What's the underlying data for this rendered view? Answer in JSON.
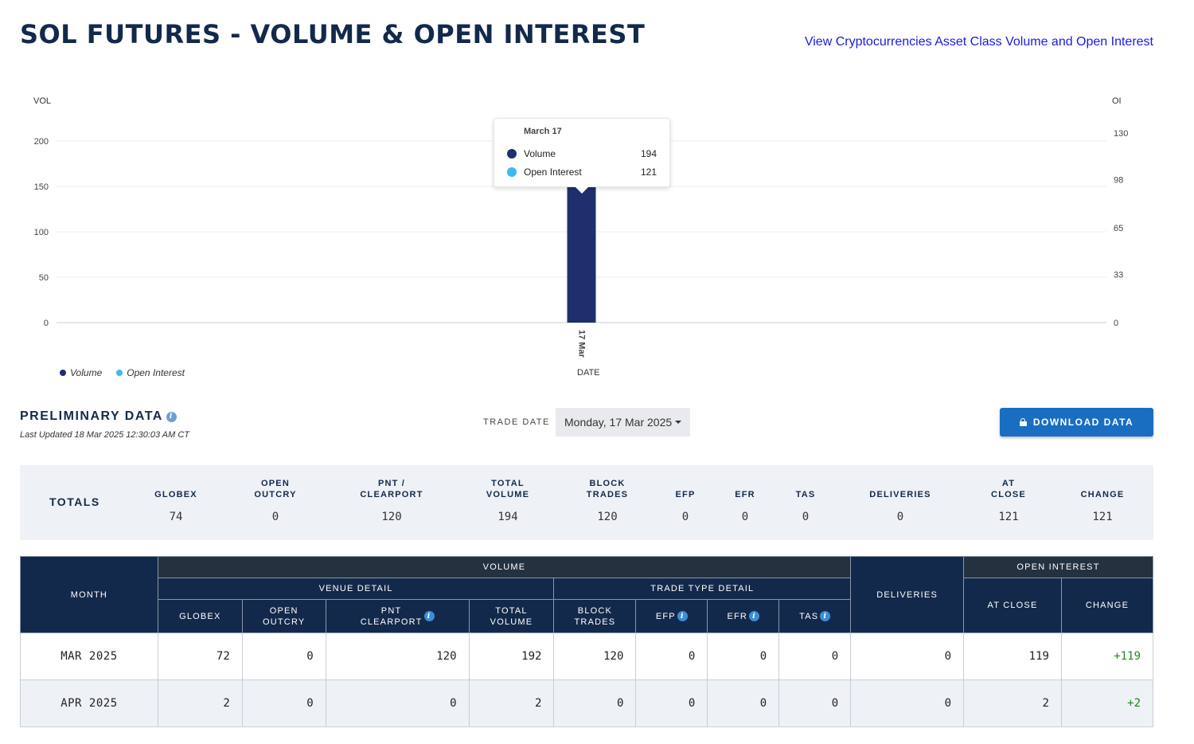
{
  "header": {
    "title": "SOL FUTURES - VOLUME & OPEN INTEREST",
    "asset_link": "View Cryptocurrencies Asset Class Volume and Open Interest"
  },
  "chart_data": {
    "type": "bar",
    "categories": [
      "17 Mar"
    ],
    "series": [
      {
        "name": "Volume",
        "values": [
          194
        ],
        "color": "#1f2f6e",
        "axis": "left"
      },
      {
        "name": "Open Interest",
        "values": [
          121
        ],
        "color": "#3bbcf0",
        "axis": "right"
      }
    ],
    "ylabel_left": "VOL",
    "ylabel_right": "OI",
    "xlabel": "DATE",
    "yticks_left": [
      "200",
      "150",
      "100",
      "50",
      "0"
    ],
    "yticks_right": [
      "130",
      "98",
      "65",
      "33",
      "0"
    ],
    "ylim_left": [
      0,
      200
    ],
    "grid": true,
    "legend": "bottom-left"
  },
  "tooltip": {
    "title": "March 17",
    "rows": [
      {
        "name": "Volume",
        "value": "194",
        "color": "#1f2f6e"
      },
      {
        "name": "Open Interest",
        "value": "121",
        "color": "#3bbcf0"
      }
    ]
  },
  "legend": {
    "volume": "Volume",
    "open_interest": "Open Interest"
  },
  "prelim": {
    "title": "PRELIMINARY DATA",
    "last_updated": "Last Updated 18 Mar 2025 12:30:03 AM CT",
    "trade_date_label": "TRADE DATE",
    "trade_date_value": "Monday, 17 Mar 2025",
    "download_label": "DOWNLOAD DATA"
  },
  "totals": {
    "label": "TOTALS",
    "columns": [
      {
        "head": "GLOBEX",
        "value": "74"
      },
      {
        "head": "OPEN\nOUTCRY",
        "value": "0"
      },
      {
        "head": "PNT /\nCLEARPORT",
        "value": "120"
      },
      {
        "head": "TOTAL\nVOLUME",
        "value": "194"
      },
      {
        "head": "BLOCK\nTRADES",
        "value": "120"
      },
      {
        "head": "EFP",
        "value": "0"
      },
      {
        "head": "EFR",
        "value": "0"
      },
      {
        "head": "TAS",
        "value": "0"
      },
      {
        "head": "DELIVERIES",
        "value": "0"
      },
      {
        "head": "AT\nCLOSE",
        "value": "121"
      },
      {
        "head": "CHANGE",
        "value": "121"
      }
    ]
  },
  "table": {
    "month": "MONTH",
    "volume": "VOLUME",
    "venue_detail": "VENUE DETAIL",
    "trade_type_detail": "TRADE TYPE DETAIL",
    "deliveries": "DELIVERIES",
    "open_interest": "OPEN INTEREST",
    "globex": "GLOBEX",
    "open_outcry": "OPEN\nOUTCRY",
    "pnt_clearport": "PNT\nCLEARPORT",
    "total_volume": "TOTAL\nVOLUME",
    "block_trades": "BLOCK\nTRADES",
    "efp": "EFP",
    "efr": "EFR",
    "tas": "TAS",
    "at_close": "AT CLOSE",
    "change": "CHANGE",
    "rows": [
      {
        "month": "MAR 2025",
        "cells": [
          "72",
          "0",
          "120",
          "192",
          "120",
          "0",
          "0",
          "0",
          "0",
          "119"
        ],
        "change": "+119"
      },
      {
        "month": "APR 2025",
        "cells": [
          "2",
          "0",
          "0",
          "2",
          "0",
          "0",
          "0",
          "0",
          "0",
          "2"
        ],
        "change": "+2"
      }
    ]
  }
}
